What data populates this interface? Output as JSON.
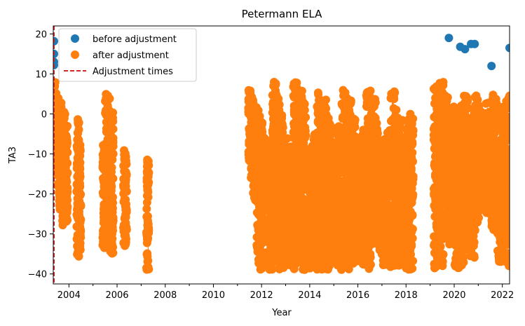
{
  "chart_data": {
    "type": "scatter",
    "title": "Petermann ELA",
    "xlabel": "Year",
    "ylabel": "TA3",
    "xlim": [
      2003.35,
      2022.3
    ],
    "ylim": [
      -42.5,
      22
    ],
    "x_ticks": [
      2004,
      2006,
      2008,
      2010,
      2012,
      2014,
      2016,
      2018,
      2020,
      2022
    ],
    "y_ticks": [
      20,
      10,
      0,
      -10,
      -20,
      -30,
      -40
    ],
    "y_tick_labels": [
      "20",
      "10",
      "0",
      "−10",
      "−20",
      "−30",
      "−40"
    ],
    "grid": false,
    "legend_position": "top-left",
    "legend": [
      {
        "label": "before adjustment",
        "marker": "circle",
        "color": "#1f77b4"
      },
      {
        "label": "after adjustment",
        "marker": "circle",
        "color": "#ff7f0e"
      },
      {
        "label": "Adjustment times",
        "marker": "dashed-line",
        "color": "#d62728"
      }
    ],
    "series": [
      {
        "name": "before adjustment",
        "color": "#1f77b4",
        "points": [
          [
            2003.38,
            18.2
          ],
          [
            2003.38,
            15.0
          ],
          [
            2003.38,
            13.0
          ],
          [
            2003.38,
            12.2
          ],
          [
            2019.78,
            19.0
          ],
          [
            2020.25,
            16.8
          ],
          [
            2020.45,
            16.2
          ],
          [
            2020.7,
            17.5
          ],
          [
            2020.85,
            17.5
          ],
          [
            2021.55,
            12.0
          ],
          [
            2022.3,
            16.5
          ]
        ]
      },
      {
        "name": "after adjustment",
        "color": "#ff7f0e",
        "bands": [
          [
            2003.35,
            2003.48,
            -14,
            8
          ],
          [
            2003.48,
            2003.58,
            -18,
            4
          ],
          [
            2003.58,
            2003.72,
            -24,
            3
          ],
          [
            2003.72,
            2003.85,
            -28,
            1
          ],
          [
            2003.85,
            2003.95,
            -27,
            -3
          ],
          [
            2004.32,
            2004.42,
            -36,
            -1
          ],
          [
            2004.42,
            2004.5,
            -34,
            -6
          ],
          [
            2005.4,
            2005.5,
            -34,
            -7
          ],
          [
            2005.5,
            2005.7,
            -32,
            6
          ],
          [
            2005.7,
            2005.85,
            -35,
            1
          ],
          [
            2006.25,
            2006.4,
            -33,
            -9
          ],
          [
            2007.22,
            2007.32,
            -39,
            -9
          ],
          [
            2011.45,
            2011.55,
            -12,
            6
          ],
          [
            2011.55,
            2011.65,
            -16,
            5
          ],
          [
            2011.65,
            2011.8,
            -22,
            3
          ],
          [
            2011.8,
            2011.95,
            -38,
            1
          ],
          [
            2011.95,
            2012.05,
            -39,
            -2
          ],
          [
            2012.05,
            2012.15,
            -32,
            -6
          ],
          [
            2012.15,
            2012.45,
            -39,
            -7
          ],
          [
            2012.45,
            2012.6,
            -37,
            9
          ],
          [
            2012.6,
            2012.75,
            -39,
            5
          ],
          [
            2012.75,
            2012.9,
            -38,
            0
          ],
          [
            2012.9,
            2013.1,
            -39,
            -6
          ],
          [
            2013.1,
            2013.3,
            -38,
            -8
          ],
          [
            2013.3,
            2013.5,
            -39,
            8
          ],
          [
            2013.5,
            2013.7,
            -38,
            6
          ],
          [
            2013.7,
            2013.85,
            -39,
            3
          ],
          [
            2013.85,
            2014.1,
            -39,
            -8
          ],
          [
            2014.1,
            2014.3,
            -38,
            -5
          ],
          [
            2014.3,
            2014.5,
            -39,
            6
          ],
          [
            2014.5,
            2014.7,
            -39,
            4
          ],
          [
            2014.7,
            2014.85,
            -39,
            -1
          ],
          [
            2014.85,
            2015.1,
            -37,
            -7
          ],
          [
            2015.1,
            2015.3,
            -38,
            -3
          ],
          [
            2015.3,
            2015.55,
            -39,
            6
          ],
          [
            2015.55,
            2015.75,
            -39,
            4
          ],
          [
            2015.75,
            2015.9,
            -38,
            -1
          ],
          [
            2015.9,
            2016.2,
            -37,
            -6
          ],
          [
            2016.2,
            2016.35,
            -38,
            -3
          ],
          [
            2016.35,
            2016.55,
            -39,
            6
          ],
          [
            2016.55,
            2016.75,
            -33,
            4
          ],
          [
            2016.75,
            2016.9,
            -32,
            -2
          ],
          [
            2016.9,
            2017.2,
            -38,
            -6
          ],
          [
            2017.2,
            2017.35,
            -38,
            -3
          ],
          [
            2017.35,
            2017.55,
            -39,
            6
          ],
          [
            2017.55,
            2017.7,
            -37,
            1
          ],
          [
            2017.7,
            2017.85,
            -39,
            -1
          ],
          [
            2017.85,
            2018.0,
            -38,
            -6
          ],
          [
            2018.0,
            2018.15,
            -39,
            -1
          ],
          [
            2018.15,
            2018.3,
            -39,
            0
          ],
          [
            2019.15,
            2019.35,
            -39,
            7
          ],
          [
            2019.35,
            2019.55,
            -38,
            8
          ],
          [
            2019.55,
            2019.75,
            -30,
            5
          ],
          [
            2019.75,
            2020.0,
            -33,
            2
          ],
          [
            2020.0,
            2020.2,
            -39,
            -1
          ],
          [
            2020.2,
            2020.4,
            -38,
            3
          ],
          [
            2020.4,
            2020.6,
            -34,
            5
          ],
          [
            2020.6,
            2020.85,
            -36,
            2
          ],
          [
            2020.85,
            2021.05,
            -30,
            6
          ],
          [
            2021.05,
            2021.3,
            -24,
            1
          ],
          [
            2021.3,
            2021.55,
            -25,
            3
          ],
          [
            2021.55,
            2021.8,
            -29,
            5
          ],
          [
            2021.8,
            2022.0,
            -37,
            2
          ],
          [
            2022.0,
            2022.15,
            -37,
            -1
          ],
          [
            2022.15,
            2022.3,
            -38,
            5
          ]
        ]
      }
    ],
    "adjustment_times": [
      2003.35
    ]
  }
}
